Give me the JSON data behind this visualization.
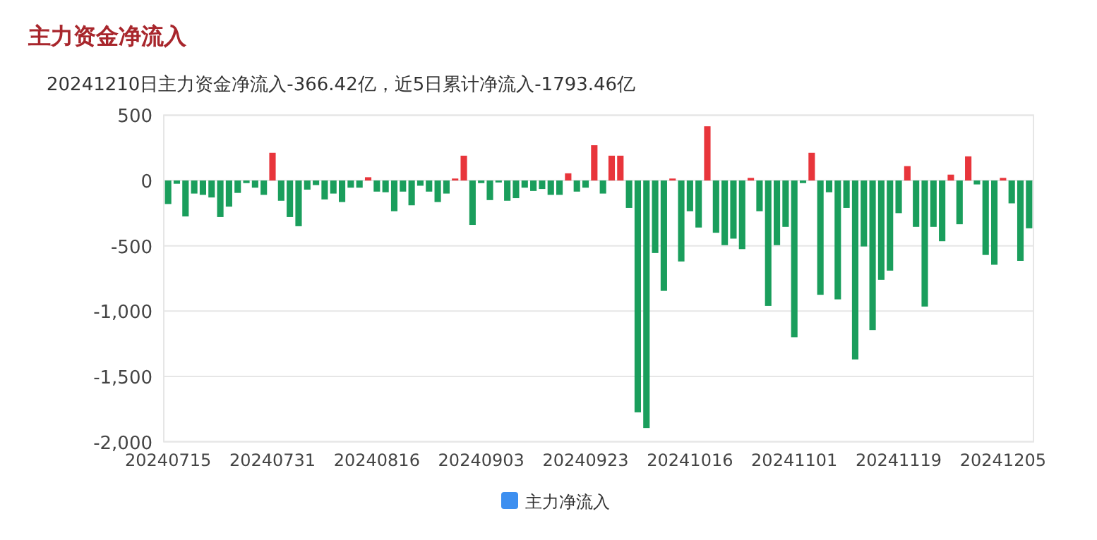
{
  "chart_data": {
    "type": "bar",
    "title": "主力资金净流入",
    "subtitle": "20241210日主力资金净流入-366.42亿，近5日累计净流入-1793.46亿",
    "categories": [
      "20240715",
      null,
      null,
      null,
      null,
      null,
      null,
      null,
      null,
      null,
      null,
      null,
      "20240731",
      null,
      null,
      null,
      null,
      null,
      null,
      null,
      null,
      null,
      null,
      null,
      "20240816",
      null,
      null,
      null,
      null,
      null,
      null,
      null,
      null,
      null,
      null,
      null,
      "20240903",
      null,
      null,
      null,
      null,
      null,
      null,
      null,
      null,
      null,
      null,
      null,
      "20240923",
      null,
      null,
      null,
      null,
      null,
      null,
      null,
      null,
      null,
      null,
      null,
      "20241016",
      null,
      null,
      null,
      null,
      null,
      null,
      null,
      null,
      null,
      null,
      null,
      "20241101",
      null,
      null,
      null,
      null,
      null,
      null,
      null,
      null,
      null,
      null,
      null,
      "20241119",
      null,
      null,
      null,
      null,
      null,
      null,
      null,
      null,
      null,
      null,
      null,
      "20241205",
      null,
      null,
      null
    ],
    "series": [
      {
        "name": "主力净流入",
        "color": "#3d8ff0",
        "values": [
          -180,
          -25,
          -275,
          -100,
          -110,
          -130,
          -280,
          -200,
          -95,
          -20,
          -55,
          -110,
          212,
          -155,
          -280,
          -350,
          -70,
          -35,
          -145,
          -100,
          -165,
          -55,
          -55,
          25,
          -85,
          -90,
          -235,
          -85,
          -190,
          -40,
          -85,
          -165,
          -100,
          15,
          190,
          -340,
          -20,
          -150,
          -15,
          -155,
          -135,
          -55,
          -80,
          -65,
          -110,
          -110,
          55,
          -85,
          -55,
          270,
          -100,
          190,
          190,
          -210,
          -1775,
          -1895,
          -555,
          -845,
          15,
          -620,
          -235,
          -360,
          415,
          -400,
          -495,
          -445,
          -525,
          20,
          -235,
          -960,
          -495,
          -355,
          -1200,
          -20,
          212,
          -875,
          -90,
          -910,
          -210,
          -1370,
          -505,
          -1145,
          -760,
          -690,
          -250,
          110,
          -355,
          -965,
          -355,
          -465,
          45,
          -335,
          185,
          -30,
          -570,
          -645,
          20,
          -175,
          -615,
          -366
        ],
        "colors": [
          "#1a9e5c",
          "#1a9e5c",
          "#1a9e5c",
          "#1a9e5c",
          "#1a9e5c",
          "#1a9e5c",
          "#1a9e5c",
          "#1a9e5c",
          "#1a9e5c",
          "#1a9e5c",
          "#1a9e5c",
          "#1a9e5c",
          "#e8353b",
          "#1a9e5c",
          "#1a9e5c",
          "#1a9e5c",
          "#1a9e5c",
          "#1a9e5c",
          "#1a9e5c",
          "#1a9e5c",
          "#1a9e5c",
          "#1a9e5c",
          "#1a9e5c",
          "#e8353b",
          "#1a9e5c",
          "#1a9e5c",
          "#1a9e5c",
          "#1a9e5c",
          "#1a9e5c",
          "#1a9e5c",
          "#1a9e5c",
          "#1a9e5c",
          "#1a9e5c",
          "#e8353b",
          "#e8353b",
          "#1a9e5c",
          "#1a9e5c",
          "#1a9e5c",
          "#1a9e5c",
          "#1a9e5c",
          "#1a9e5c",
          "#1a9e5c",
          "#1a9e5c",
          "#1a9e5c",
          "#1a9e5c",
          "#1a9e5c",
          "#e8353b",
          "#1a9e5c",
          "#1a9e5c",
          "#e8353b",
          "#1a9e5c",
          "#e8353b",
          "#e8353b",
          "#1a9e5c",
          "#1a9e5c",
          "#1a9e5c",
          "#1a9e5c",
          "#1a9e5c",
          "#e8353b",
          "#1a9e5c",
          "#1a9e5c",
          "#1a9e5c",
          "#e8353b",
          "#1a9e5c",
          "#1a9e5c",
          "#1a9e5c",
          "#1a9e5c",
          "#e8353b",
          "#1a9e5c",
          "#1a9e5c",
          "#1a9e5c",
          "#1a9e5c",
          "#1a9e5c",
          "#1a9e5c",
          "#e8353b",
          "#1a9e5c",
          "#1a9e5c",
          "#1a9e5c",
          "#1a9e5c",
          "#1a9e5c",
          "#1a9e5c",
          "#1a9e5c",
          "#1a9e5c",
          "#1a9e5c",
          "#1a9e5c",
          "#e8353b",
          "#1a9e5c",
          "#1a9e5c",
          "#1a9e5c",
          "#1a9e5c",
          "#e8353b",
          "#1a9e5c",
          "#e8353b",
          "#1a9e5c",
          "#1a9e5c",
          "#1a9e5c",
          "#e8353b",
          "#1a9e5c",
          "#1a9e5c",
          "#1a9e5c"
        ]
      }
    ],
    "ylim": [
      -2000,
      500
    ],
    "yticks": [
      500,
      0,
      {
        "value": -500,
        "label": "-500"
      },
      {
        "value": -1000,
        "label": "-1,000"
      },
      {
        "value": -1500,
        "label": "-1,500"
      },
      {
        "value": -2000,
        "label": "-2,000"
      }
    ],
    "grid": "y",
    "legend": "bottom"
  }
}
